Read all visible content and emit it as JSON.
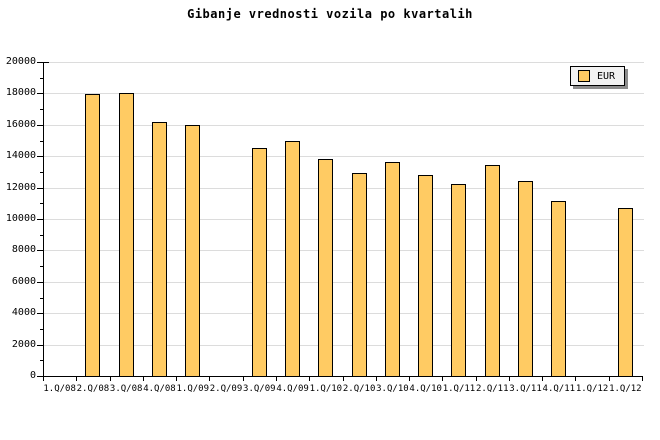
{
  "title": "Gibanje vrednosti vozila po kvartalih",
  "legend": {
    "label": "EUR"
  },
  "colors": {
    "bar_fill": "#FFCB63",
    "bar_border": "#000000",
    "gridline": "#DCDCDC",
    "axis": "#000000",
    "legend_bg": "#F2F2F2",
    "legend_shadow": "#8C8C8C",
    "background": "#FFFFFF",
    "text": "#000000"
  },
  "y_axis": {
    "min": 0,
    "max": 20000,
    "major_step": 2000,
    "minor_step": 1000,
    "tick_labels": [
      "0",
      "2000",
      "4000",
      "6000",
      "8000",
      "10000",
      "12000",
      "14000",
      "16000",
      "18000",
      "20000"
    ]
  },
  "chart_data": {
    "type": "bar",
    "title": "Gibanje vrednosti vozila po kvartalih",
    "categories": [
      "1.Q/08",
      "2.Q/08",
      "3.Q/08",
      "4.Q/08",
      "1.Q/09",
      "2.Q/09",
      "3.Q/09",
      "4.Q/09",
      "1.Q/10",
      "2.Q/10",
      "3.Q/10",
      "4.Q/10",
      "1.Q/11",
      "2.Q/11",
      "3.Q/11",
      "4.Q/11",
      "1.Q/12",
      "1.Q/12"
    ],
    "series": [
      {
        "name": "EUR",
        "values": [
          null,
          17950,
          18000,
          16200,
          16000,
          null,
          14500,
          15000,
          13850,
          12950,
          13650,
          12800,
          12200,
          13450,
          12400,
          11150,
          null,
          10700
        ]
      }
    ],
    "xlabel": "",
    "ylabel": "",
    "ylim": [
      0,
      20000
    ],
    "grid": true,
    "legend_position": "top-right"
  }
}
